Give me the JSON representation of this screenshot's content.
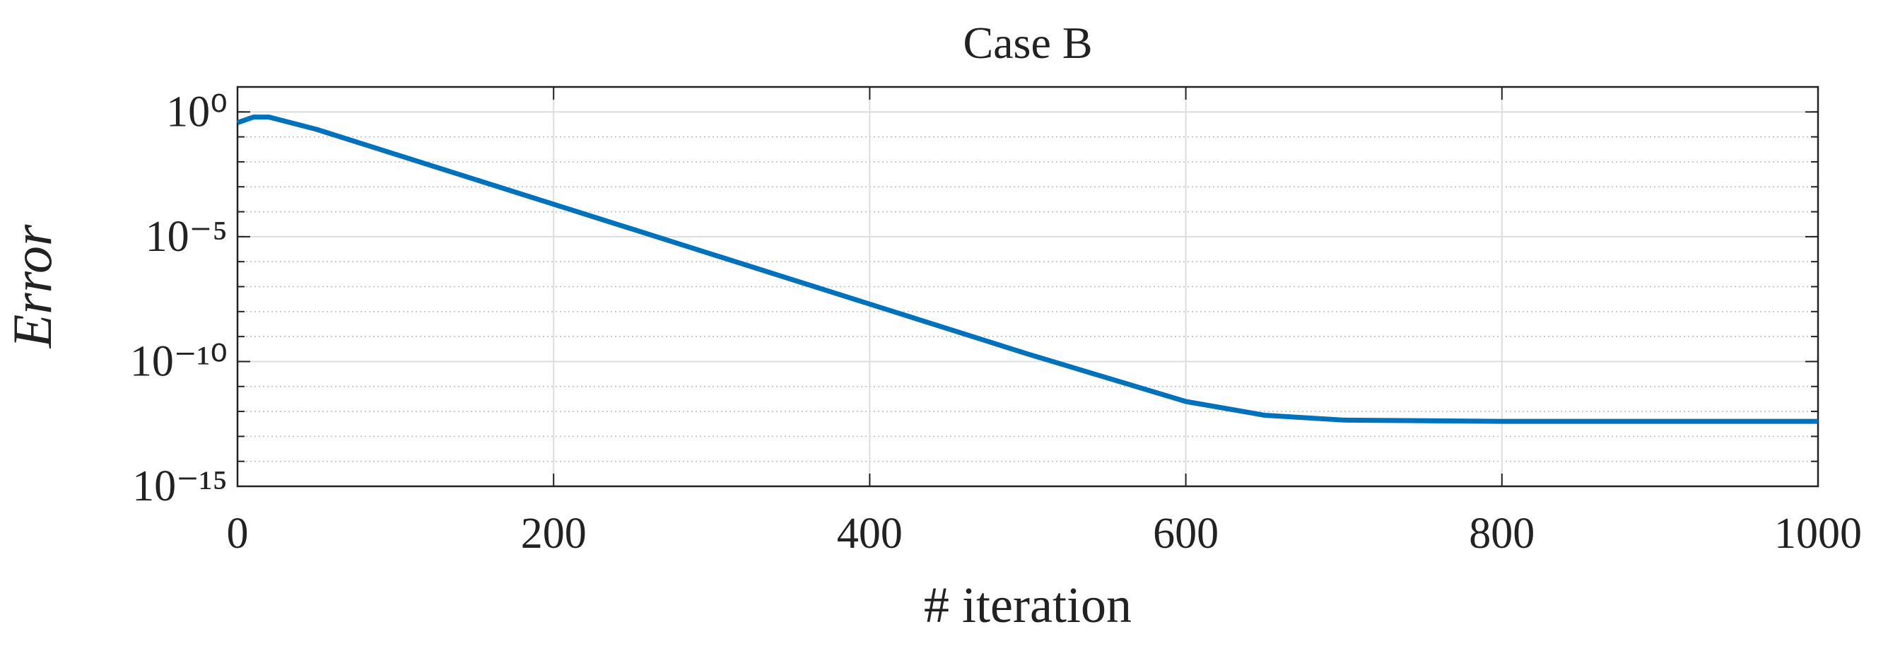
{
  "chart_data": {
    "type": "line",
    "title": "Case B",
    "x_label": "# iteration",
    "y_label": "Error",
    "y_scale": "log",
    "grid": true,
    "minor_grid": true,
    "xlim": [
      0,
      1000
    ],
    "xticks": [
      0,
      200,
      400,
      600,
      800,
      1000
    ],
    "ylim": [
      1e-15,
      10
    ],
    "yticks": [
      {
        "value": 1e-15,
        "label": "10⁻¹⁵"
      },
      {
        "value": 1e-10,
        "label": "10⁻¹⁰"
      },
      {
        "value": 1e-05,
        "label": "10⁻⁵"
      },
      {
        "value": 1,
        "label": "10⁰"
      }
    ],
    "x": [
      0,
      10,
      20,
      50,
      100,
      200,
      300,
      400,
      500,
      600,
      650,
      700,
      800,
      900,
      1000
    ],
    "series": [
      {
        "name": "Error",
        "color": "#0072bd",
        "values": [
          0.37,
          0.62,
          0.62,
          0.2,
          0.02,
          0.0002,
          2e-06,
          2e-08,
          2e-10,
          2.5e-12,
          7e-13,
          4.5e-13,
          4e-13,
          4e-13,
          4e-13
        ]
      }
    ]
  }
}
